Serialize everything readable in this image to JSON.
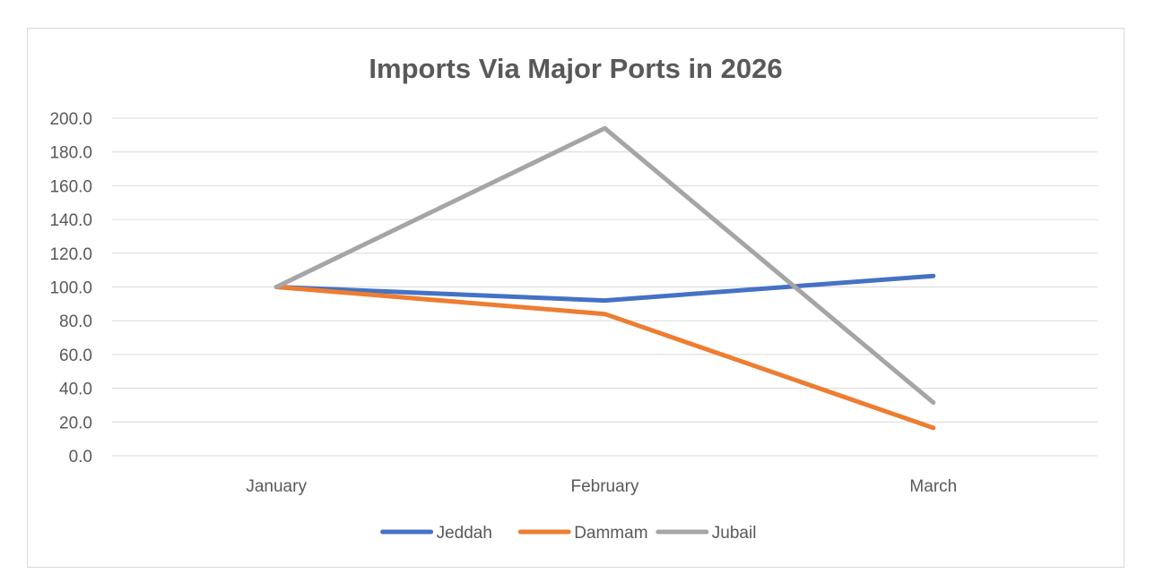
{
  "chart_data": {
    "type": "line",
    "title": "Imports Via Major Ports in 2026",
    "xlabel": "",
    "ylabel": "",
    "categories": [
      "January",
      "February",
      "March"
    ],
    "ylim": [
      0,
      200
    ],
    "y_ticks": [
      "0.0",
      "20.0",
      "40.0",
      "60.0",
      "80.0",
      "100.0",
      "120.0",
      "140.0",
      "160.0",
      "180.0",
      "200.0"
    ],
    "grid": true,
    "legend_position": "bottom",
    "series": [
      {
        "name": "Jeddah",
        "color": "#4472c4",
        "values": [
          100,
          92,
          106.5
        ]
      },
      {
        "name": "Dammam",
        "color": "#ed7d31",
        "values": [
          100,
          84,
          16.5
        ]
      },
      {
        "name": "Jubail",
        "color": "#a5a5a5",
        "values": [
          100,
          194,
          31.5
        ]
      }
    ]
  }
}
